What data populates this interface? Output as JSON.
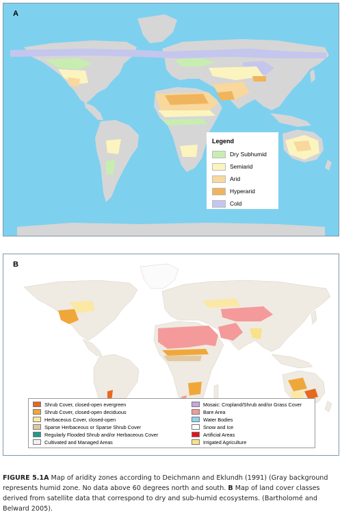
{
  "panel_a": {
    "label": "A",
    "legend": {
      "title": "Legend",
      "items": [
        {
          "label": "Dry Subhumid",
          "color": "#c7eeb0"
        },
        {
          "label": "Semiarid",
          "color": "#fbf4be"
        },
        {
          "label": "Arid",
          "color": "#f8d89c"
        },
        {
          "label": "Hyperarid",
          "color": "#f0b45c"
        },
        {
          "label": "Cold",
          "color": "#c4c6ee"
        }
      ]
    }
  },
  "panel_b": {
    "label": "B",
    "legend": {
      "items": [
        {
          "label": "Shrub Cover, closed-open evergreen",
          "color": "#e6691e"
        },
        {
          "label": "Shrub Cover, closed-open deciduous",
          "color": "#f0a73a"
        },
        {
          "label": "Herbaceous Cover, closed-open",
          "color": "#fbe8a4"
        },
        {
          "label": "Sparse Herbaceous or Sparse Shrub Cover",
          "color": "#e3c9a0"
        },
        {
          "label": "Regularly Flooded Shrub and/or Herbaceous Cover",
          "color": "#1e9b8c"
        },
        {
          "label": "Cultivated and Managed Areas",
          "color": "#f3f0f3"
        },
        {
          "label": "Mosaic: Cropland/Shrub and/or Grass Cover",
          "color": "#c9a6e2"
        },
        {
          "label": "Bare Area",
          "color": "#f49a9a"
        },
        {
          "label": "Water Bodies",
          "color": "#8fd3f0"
        },
        {
          "label": "Snow and Ice",
          "color": "#ffffff"
        },
        {
          "label": "Artificial Areas",
          "color": "#e2141b"
        },
        {
          "label": "Irrigated Agriculture",
          "color": "#f8e28a"
        }
      ]
    }
  },
  "caption": {
    "lead": "FIGURE 5.1A",
    "text_a": " Map of aridity zones according to Deichmann and Eklundh (1991) (Gray background represents humid zone. No data above 60 degrees north and south. ",
    "lead_b": "B",
    "text_b": " Map of land cover classes derived from satellite data that correspond to dry and sub-humid ecosystems. (Bartholomé and Belward 2005)."
  }
}
